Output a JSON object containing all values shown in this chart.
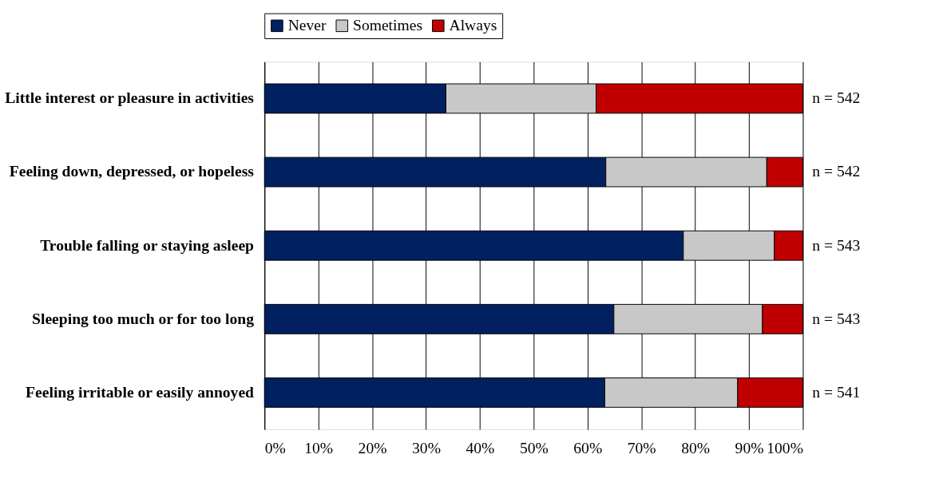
{
  "chart_data": {
    "type": "bar",
    "orientation": "horizontal",
    "stacked": true,
    "categories": [
      "Little interest or pleasure in activities",
      "Feeling down, depressed, or hopeless",
      "Trouble falling or staying asleep",
      "Sleeping too much or for too long",
      "Feeling irritable or easily annoyed"
    ],
    "series": [
      {
        "name": "Never",
        "color": "#002060",
        "values": [
          33.7,
          63.4,
          77.8,
          64.9,
          63.2
        ]
      },
      {
        "name": "Sometimes",
        "color": "#c8c8c8",
        "values": [
          27.9,
          29.9,
          16.9,
          27.6,
          24.7
        ]
      },
      {
        "name": "Always",
        "color": "#c00000",
        "values": [
          38.4,
          6.7,
          5.3,
          7.5,
          12.1
        ]
      }
    ],
    "xlim": [
      0,
      100
    ],
    "xticks": [
      {
        "value": 0,
        "label": "0%"
      },
      {
        "value": 10,
        "label": "10%"
      },
      {
        "value": 20,
        "label": "20%"
      },
      {
        "value": 30,
        "label": "30%"
      },
      {
        "value": 40,
        "label": "40%"
      },
      {
        "value": 50,
        "label": "50%"
      },
      {
        "value": 60,
        "label": "60%"
      },
      {
        "value": 70,
        "label": "70%"
      },
      {
        "value": 80,
        "label": "80%"
      },
      {
        "value": 90,
        "label": "90%"
      },
      {
        "value": 100,
        "label": "100%"
      }
    ],
    "annotations": [
      "n = 542",
      "n = 542",
      "n = 543",
      "n = 543",
      "n = 541"
    ],
    "grid": "x",
    "legend": "top"
  }
}
